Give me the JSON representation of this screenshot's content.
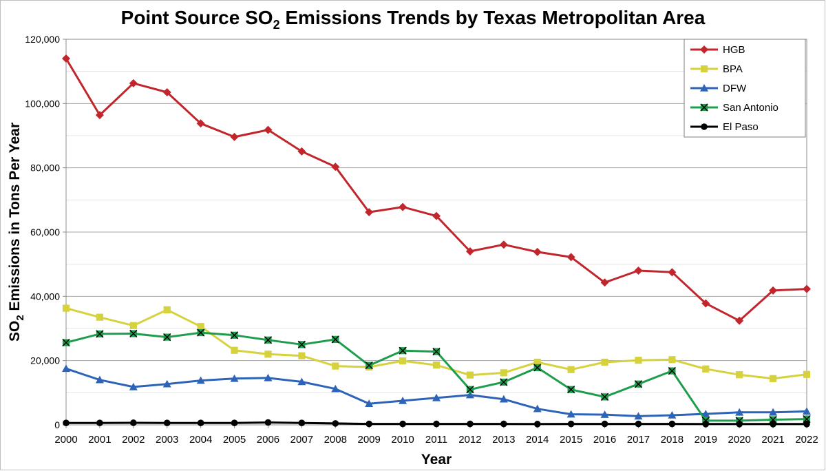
{
  "chart_data": {
    "type": "line",
    "title": {
      "prefix": "Point Source SO",
      "subscript": "2",
      "suffix": " Emissions Trends by Texas Metropolitan Area"
    },
    "xlabel": "Year",
    "ylabel": {
      "prefix": "SO",
      "subscript": "2",
      "suffix": " Emissions in Tons Per Year"
    },
    "ylim": [
      0,
      120000
    ],
    "yticks": [
      0,
      20000,
      40000,
      60000,
      80000,
      100000,
      120000
    ],
    "ytick_labels": [
      "0",
      "20,000",
      "40,000",
      "60,000",
      "80,000",
      "100,000",
      "120,000"
    ],
    "grid": "horizontal",
    "legend_position": "top-right",
    "x": [
      "2000",
      "2001",
      "2002",
      "2003",
      "2004",
      "2005",
      "2006",
      "2007",
      "2008",
      "2009",
      "2010",
      "2011",
      "2012",
      "2013",
      "2014",
      "2015",
      "2016",
      "2017",
      "2018",
      "2019",
      "2020",
      "2021",
      "2022"
    ],
    "series": [
      {
        "name": "HGB",
        "color": "#C0262C",
        "marker": "diamond",
        "values": [
          114000,
          96400,
          106300,
          103500,
          93800,
          89600,
          91800,
          85100,
          80300,
          66200,
          67800,
          65000,
          54000,
          56100,
          53800,
          52200,
          44300,
          48000,
          47500,
          37800,
          32400,
          41800,
          42300
        ]
      },
      {
        "name": "BPA",
        "color": "#D6D23E",
        "marker": "square",
        "values": [
          36300,
          33500,
          30900,
          35800,
          30600,
          23200,
          22000,
          21500,
          18300,
          18000,
          19900,
          18600,
          15500,
          16200,
          19500,
          17200,
          19500,
          20100,
          20300,
          17400,
          15600,
          14400,
          15700
        ]
      },
      {
        "name": "DFW",
        "color": "#2E64B8",
        "marker": "triangle",
        "values": [
          17500,
          14000,
          11800,
          12700,
          13800,
          14400,
          14600,
          13400,
          11200,
          6600,
          7500,
          8400,
          9300,
          8000,
          5000,
          3300,
          3200,
          2700,
          3000,
          3400,
          3900,
          3900,
          4200
        ]
      },
      {
        "name": "San Antonio",
        "color": "#1E9E4C",
        "marker": "x-square",
        "values": [
          25600,
          28300,
          28400,
          27300,
          28700,
          27900,
          26400,
          25000,
          26600,
          18500,
          23100,
          22800,
          11000,
          13300,
          17800,
          11000,
          8700,
          12700,
          16800,
          1300,
          1300,
          1600,
          1800
        ]
      },
      {
        "name": "El Paso",
        "color": "#000000",
        "marker": "circle",
        "values": [
          600,
          600,
          650,
          600,
          600,
          600,
          750,
          600,
          450,
          300,
          300,
          300,
          300,
          300,
          250,
          300,
          300,
          300,
          300,
          250,
          250,
          250,
          250
        ]
      }
    ]
  }
}
